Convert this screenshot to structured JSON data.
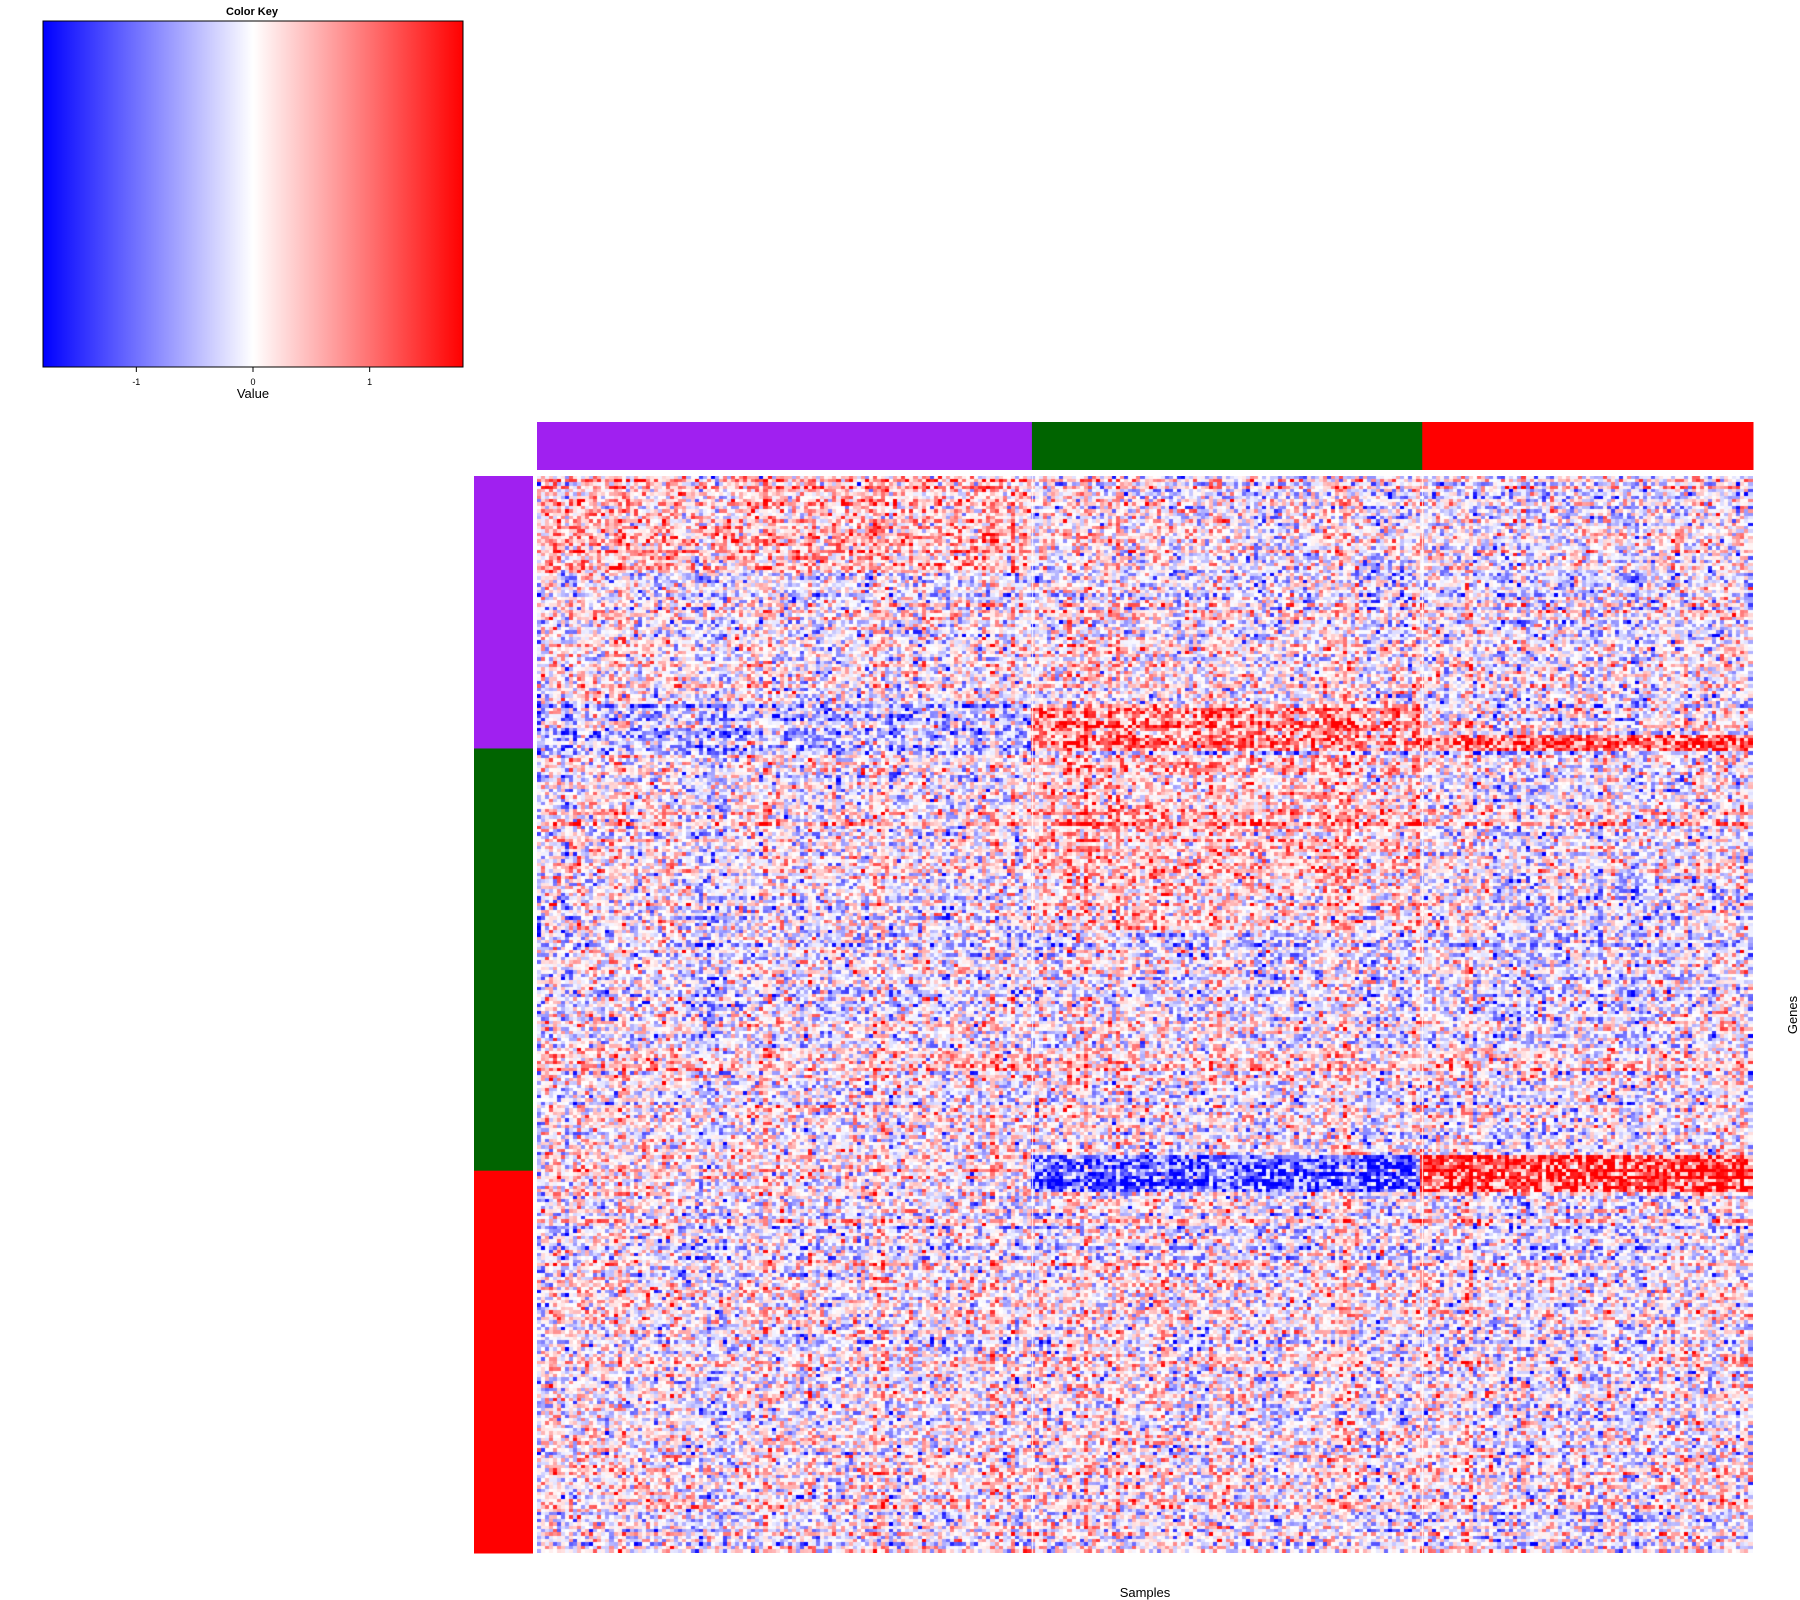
{
  "chart_data": {
    "type": "heatmap",
    "color_key": {
      "title": "Color Key",
      "xlabel": "Value",
      "range": [
        -1.8,
        1.8
      ],
      "ticks": [
        -1,
        0,
        1
      ],
      "tick_labels": [
        "-1",
        "0",
        "1"
      ],
      "colors": [
        "#0000ff",
        "#ffffff",
        "#ff0000"
      ]
    },
    "xlabel": "Samples",
    "ylabel": "Genes",
    "column_groups": [
      {
        "color": "#a020f0",
        "fraction": 0.407
      },
      {
        "color": "#006400",
        "fraction": 0.321
      },
      {
        "color": "#ff0000",
        "fraction": 0.272
      }
    ],
    "row_groups": [
      {
        "color": "#a020f0",
        "fraction": 0.253
      },
      {
        "color": "#006400",
        "fraction": 0.392
      },
      {
        "color": "#ff0000",
        "fraction": 0.355
      }
    ],
    "matrix": {
      "n_columns": 300,
      "n_rows": 320
    }
  }
}
